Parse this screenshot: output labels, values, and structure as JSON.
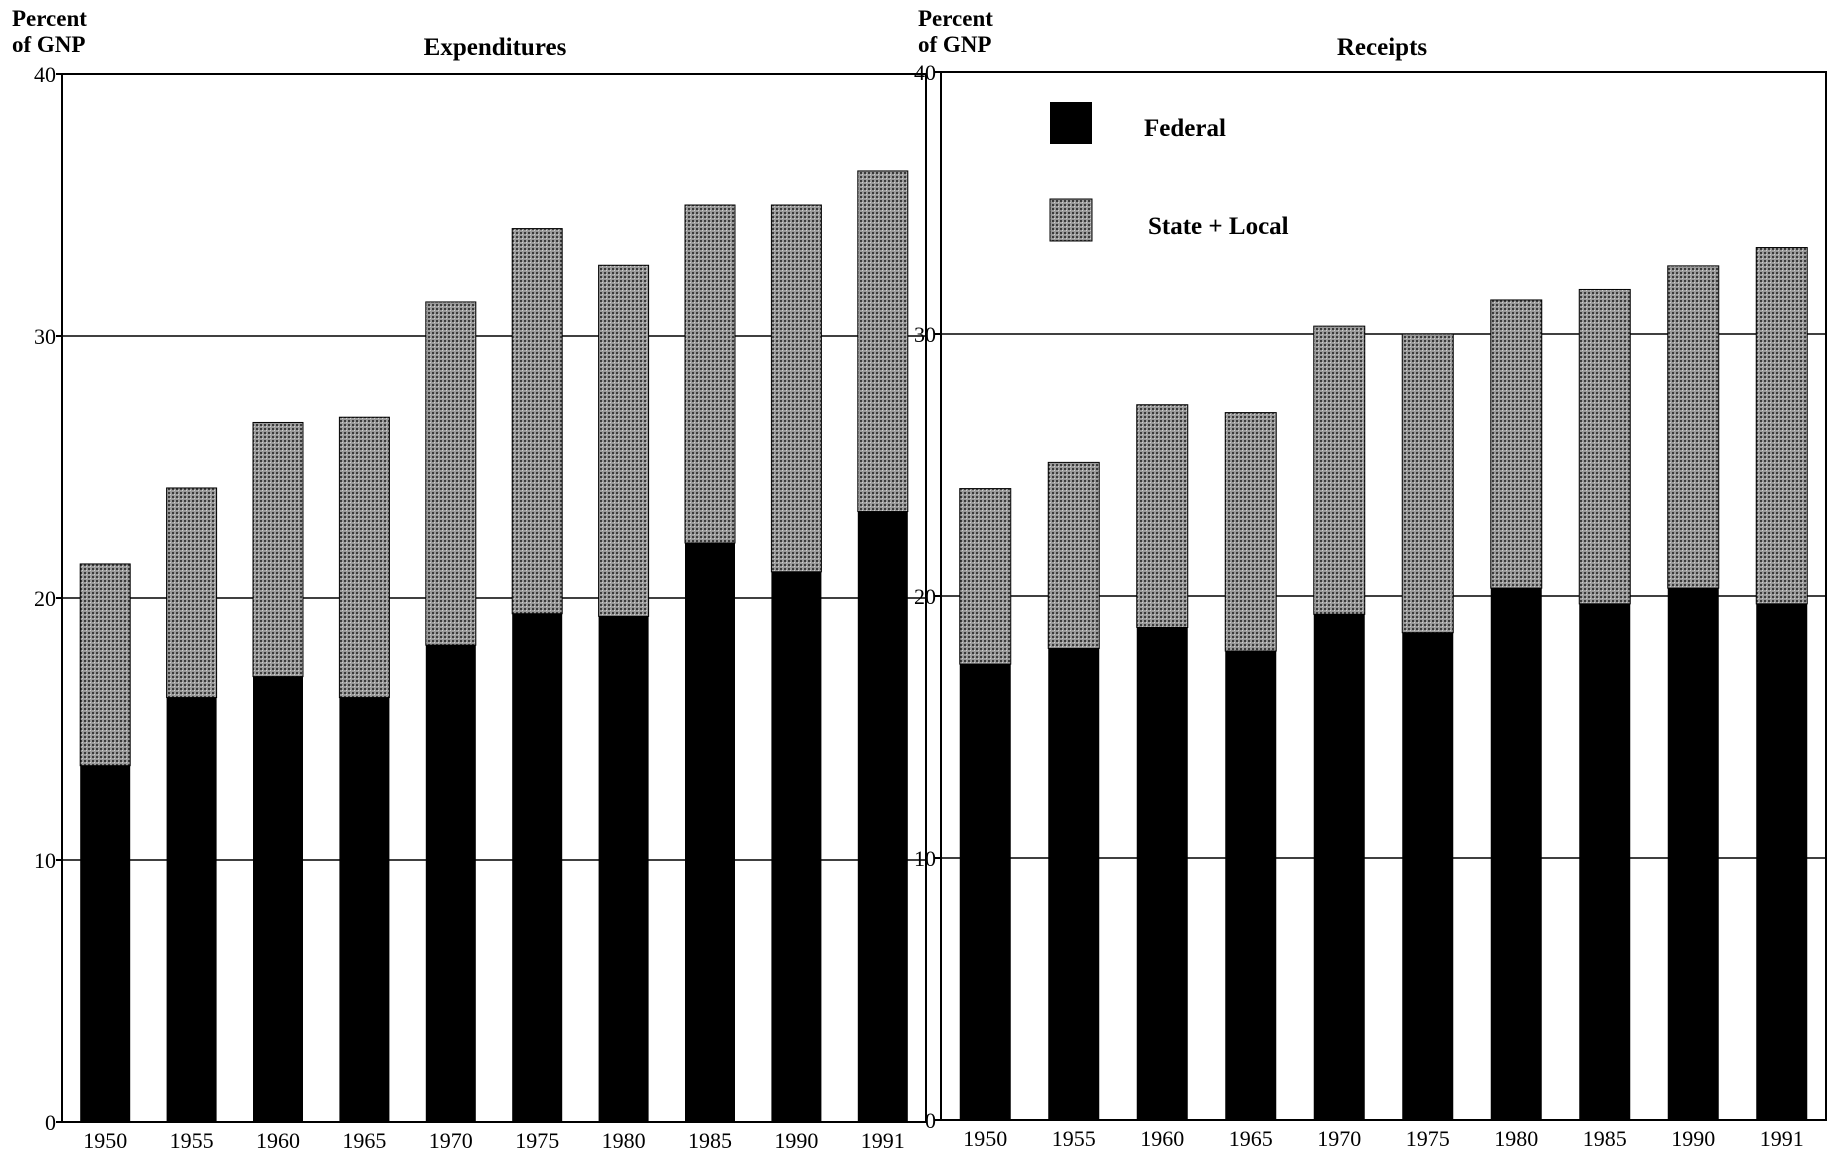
{
  "charts": [
    {
      "title": "Expenditures",
      "ylabel_line1": "Percent",
      "ylabel_line2": "of GNP"
    },
    {
      "title": "Receipts",
      "ylabel_line1": "Percent",
      "ylabel_line2": "of GNP"
    }
  ],
  "legend": {
    "federal": "Federal",
    "state_local": "State + Local"
  },
  "colors": {
    "federal": "#000000",
    "state_local": "#8c8c8c"
  },
  "chart_data": [
    {
      "type": "bar",
      "stacked": true,
      "title": "Expenditures",
      "ylabel": "Percent of GNP",
      "xlabel": "",
      "categories": [
        "1950",
        "1955",
        "1960",
        "1965",
        "1970",
        "1975",
        "1980",
        "1985",
        "1990",
        "1991"
      ],
      "series": [
        {
          "name": "Federal",
          "values": [
            13.6,
            16.2,
            17.0,
            16.2,
            18.2,
            19.4,
            19.3,
            22.1,
            21.0,
            23.3
          ]
        },
        {
          "name": "State + Local",
          "values": [
            7.7,
            8.0,
            9.7,
            10.7,
            13.1,
            14.7,
            13.4,
            12.9,
            14.0,
            13.0
          ]
        }
      ],
      "ylim": [
        0,
        40
      ],
      "yticks": [
        0,
        10,
        20,
        30,
        40
      ],
      "grid": "horizontal at 10, 20, 30"
    },
    {
      "type": "bar",
      "stacked": true,
      "title": "Receipts",
      "ylabel": "Percent of GNP",
      "xlabel": "",
      "categories": [
        "1950",
        "1955",
        "1960",
        "1965",
        "1970",
        "1975",
        "1980",
        "1985",
        "1990",
        "1991"
      ],
      "series": [
        {
          "name": "Federal",
          "values": [
            17.4,
            18.0,
            18.8,
            17.9,
            19.3,
            18.6,
            20.3,
            19.7,
            20.3,
            19.7
          ]
        },
        {
          "name": "State + Local",
          "values": [
            6.7,
            7.1,
            8.5,
            9.1,
            11.0,
            11.4,
            11.0,
            12.0,
            12.3,
            13.6
          ]
        }
      ],
      "ylim": [
        0,
        40
      ],
      "yticks": [
        0,
        10,
        20,
        30,
        40
      ],
      "grid": "horizontal at 10, 20, 30",
      "legend_position": "top-left"
    }
  ]
}
